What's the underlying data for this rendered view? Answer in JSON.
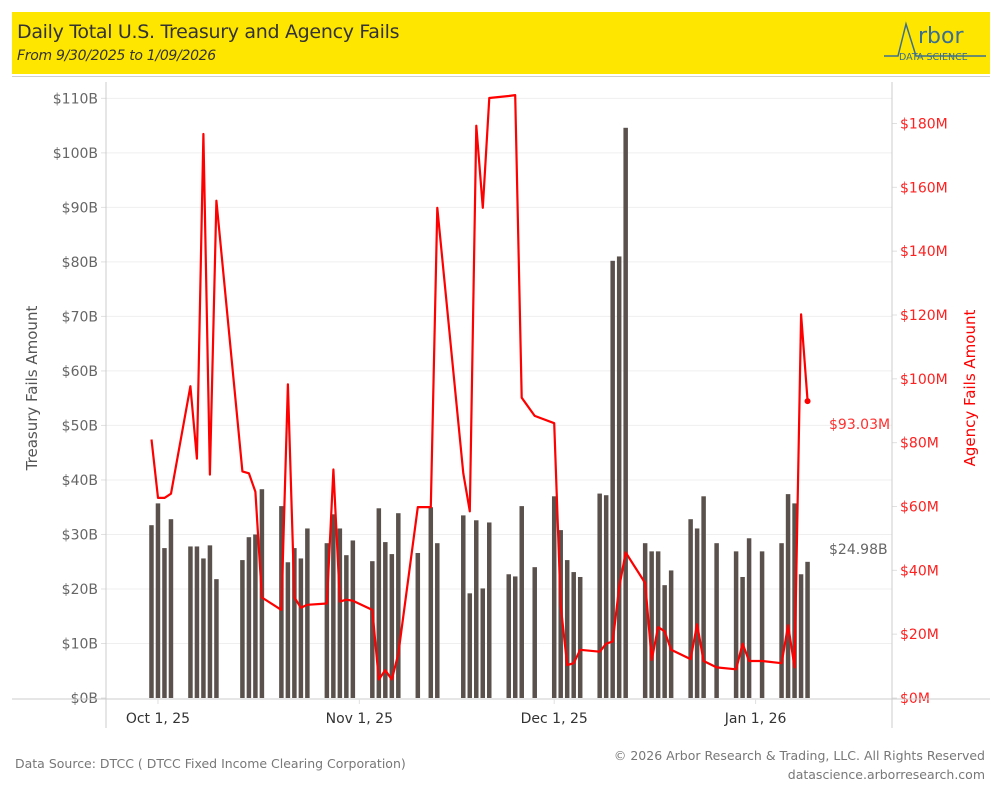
{
  "header": {
    "title": "Daily Total U.S. Treasury and Agency Fails",
    "subtitle": "From 9/30/2025 to 1/09/2026",
    "logo_word": "rbor",
    "logo_sub": "DATA SCIENCE"
  },
  "footer": {
    "source": "Data Source: DTCC ( DTCC Fixed Income Clearing Corporation)",
    "copyright": "© 2026 Arbor Research & Trading, LLC. All Rights Reserved",
    "website": "datascience.arborresearch.com"
  },
  "colors": {
    "header_bg": "#ffe600",
    "bar": "#5a514c",
    "line": "#ff0000",
    "axis_text": "#666666"
  },
  "chart_data": {
    "type": "bar+line",
    "title": "Daily Total U.S. Treasury and Agency Fails",
    "subtitle": "From 9/30/2025 to 1/09/2026",
    "xlabel": "",
    "x_ticks": [
      {
        "date": "2025-10-01",
        "label": "Oct 1, 25"
      },
      {
        "date": "2025-11-01",
        "label": "Nov 1, 25"
      },
      {
        "date": "2025-12-01",
        "label": "Dec 1, 25"
      },
      {
        "date": "2026-01-01",
        "label": "Jan 1, 26"
      }
    ],
    "x_range": [
      "2025-09-23",
      "2026-01-22"
    ],
    "left_axis": {
      "label": "Treasury Fails Amount",
      "unit": "B",
      "range": [
        0,
        113
      ],
      "ticks": [
        0,
        10,
        20,
        30,
        40,
        50,
        60,
        70,
        80,
        90,
        100,
        110
      ],
      "tick_labels": [
        "$0B",
        "$10B",
        "$20B",
        "$30B",
        "$40B",
        "$50B",
        "$60B",
        "$70B",
        "$80B",
        "$90B",
        "$100B",
        "$110B"
      ]
    },
    "right_axis": {
      "label": "Agency Fails Amount",
      "unit": "M",
      "range": [
        0,
        193
      ],
      "ticks": [
        0,
        20,
        40,
        60,
        80,
        100,
        120,
        140,
        160,
        180
      ],
      "tick_labels": [
        "$0M",
        "$20M",
        "$40M",
        "$60M",
        "$80M",
        "$100M",
        "$120M",
        "$140M",
        "$160M",
        "$180M"
      ]
    },
    "grid": true,
    "series": [
      {
        "name": "Treasury Fails Amount",
        "type": "bar",
        "axis": "left",
        "last_label": "$24.98B"
      },
      {
        "name": "Agency Fails Amount",
        "type": "line",
        "axis": "right",
        "last_label": "$93.03M"
      }
    ],
    "dates": [
      "2025-09-30",
      "2025-10-01",
      "2025-10-02",
      "2025-10-03",
      "2025-10-06",
      "2025-10-07",
      "2025-10-08",
      "2025-10-09",
      "2025-10-10",
      "2025-10-14",
      "2025-10-15",
      "2025-10-16",
      "2025-10-17",
      "2025-10-20",
      "2025-10-21",
      "2025-10-22",
      "2025-10-23",
      "2025-10-24",
      "2025-10-27",
      "2025-10-28",
      "2025-10-29",
      "2025-10-30",
      "2025-10-31",
      "2025-11-03",
      "2025-11-04",
      "2025-11-05",
      "2025-11-06",
      "2025-11-07",
      "2025-11-10",
      "2025-11-12",
      "2025-11-13",
      "2025-11-17",
      "2025-11-18",
      "2025-11-19",
      "2025-11-20",
      "2025-11-21",
      "2025-11-24",
      "2025-11-25",
      "2025-11-26",
      "2025-11-28",
      "2025-12-01",
      "2025-12-02",
      "2025-12-03",
      "2025-12-04",
      "2025-12-05",
      "2025-12-08",
      "2025-12-09",
      "2025-12-10",
      "2025-12-11",
      "2025-12-12",
      "2025-12-15",
      "2025-12-16",
      "2025-12-17",
      "2025-12-18",
      "2025-12-19",
      "2025-12-22",
      "2025-12-23",
      "2025-12-24",
      "2025-12-26",
      "2025-12-29",
      "2025-12-30",
      "2025-12-31",
      "2026-01-02",
      "2026-01-05",
      "2026-01-06",
      "2026-01-07",
      "2026-01-08",
      "2026-01-09"
    ],
    "treasury_B": [
      31.7,
      35.7,
      27.5,
      32.8,
      27.8,
      27.8,
      25.6,
      28.0,
      21.8,
      25.3,
      29.5,
      30.0,
      38.3,
      35.2,
      24.9,
      27.5,
      25.6,
      31.1,
      28.4,
      33.7,
      31.1,
      26.2,
      28.9,
      25.1,
      34.8,
      28.6,
      26.4,
      33.9,
      26.6,
      35.0,
      28.4,
      33.5,
      19.2,
      32.6,
      20.1,
      32.2,
      22.7,
      22.3,
      35.2,
      24.0,
      37.0,
      30.8,
      25.3,
      23.1,
      22.2,
      37.5,
      37.2,
      80.2,
      81.0,
      104.6,
      28.4,
      26.9,
      26.9,
      20.7,
      23.4,
      32.8,
      31.1,
      37.0,
      28.4,
      26.9,
      22.2,
      29.3,
      26.9,
      28.4,
      37.4,
      35.7,
      22.7,
      24.98
    ],
    "agency_M": [
      81.0,
      62.7,
      62.7,
      64.0,
      97.7,
      75.0,
      176.7,
      70.0,
      155.8,
      71.0,
      70.4,
      64.6,
      31.5,
      27.6,
      98.3,
      31.5,
      28.3,
      29.2,
      29.6,
      71.6,
      30.2,
      30.8,
      30.5,
      27.6,
      5.8,
      8.7,
      5.8,
      13.8,
      59.8,
      59.8,
      153.6,
      70.4,
      58.5,
      179.3,
      153.6,
      188.0,
      188.6,
      188.9,
      94.1,
      88.4,
      86.1,
      28.9,
      10.3,
      10.9,
      15.1,
      14.5,
      17.0,
      17.7,
      34.7,
      45.6,
      36.0,
      11.9,
      22.2,
      20.9,
      15.1,
      12.2,
      23.1,
      11.6,
      9.6,
      9.0,
      17.0,
      11.6,
      11.6,
      10.9,
      22.8,
      9.6,
      120.2,
      93.03
    ]
  }
}
